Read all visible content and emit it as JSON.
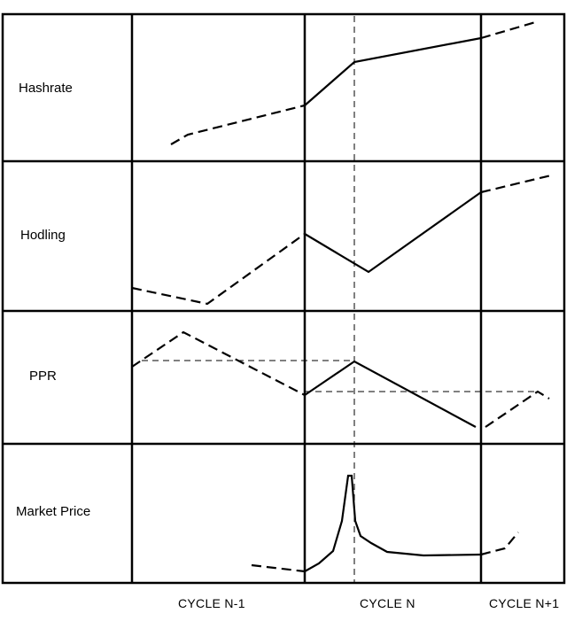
{
  "rows": [
    {
      "label": "Hashrate"
    },
    {
      "label": "Hodling"
    },
    {
      "label": "PPR"
    },
    {
      "label": "Market Price"
    }
  ],
  "cycles": [
    {
      "label": "CYCLE N-1"
    },
    {
      "label": "CYCLE N"
    },
    {
      "label": "CYCLE N+1"
    }
  ],
  "colors": {
    "line": "#000000",
    "background": "#ffffff"
  }
}
